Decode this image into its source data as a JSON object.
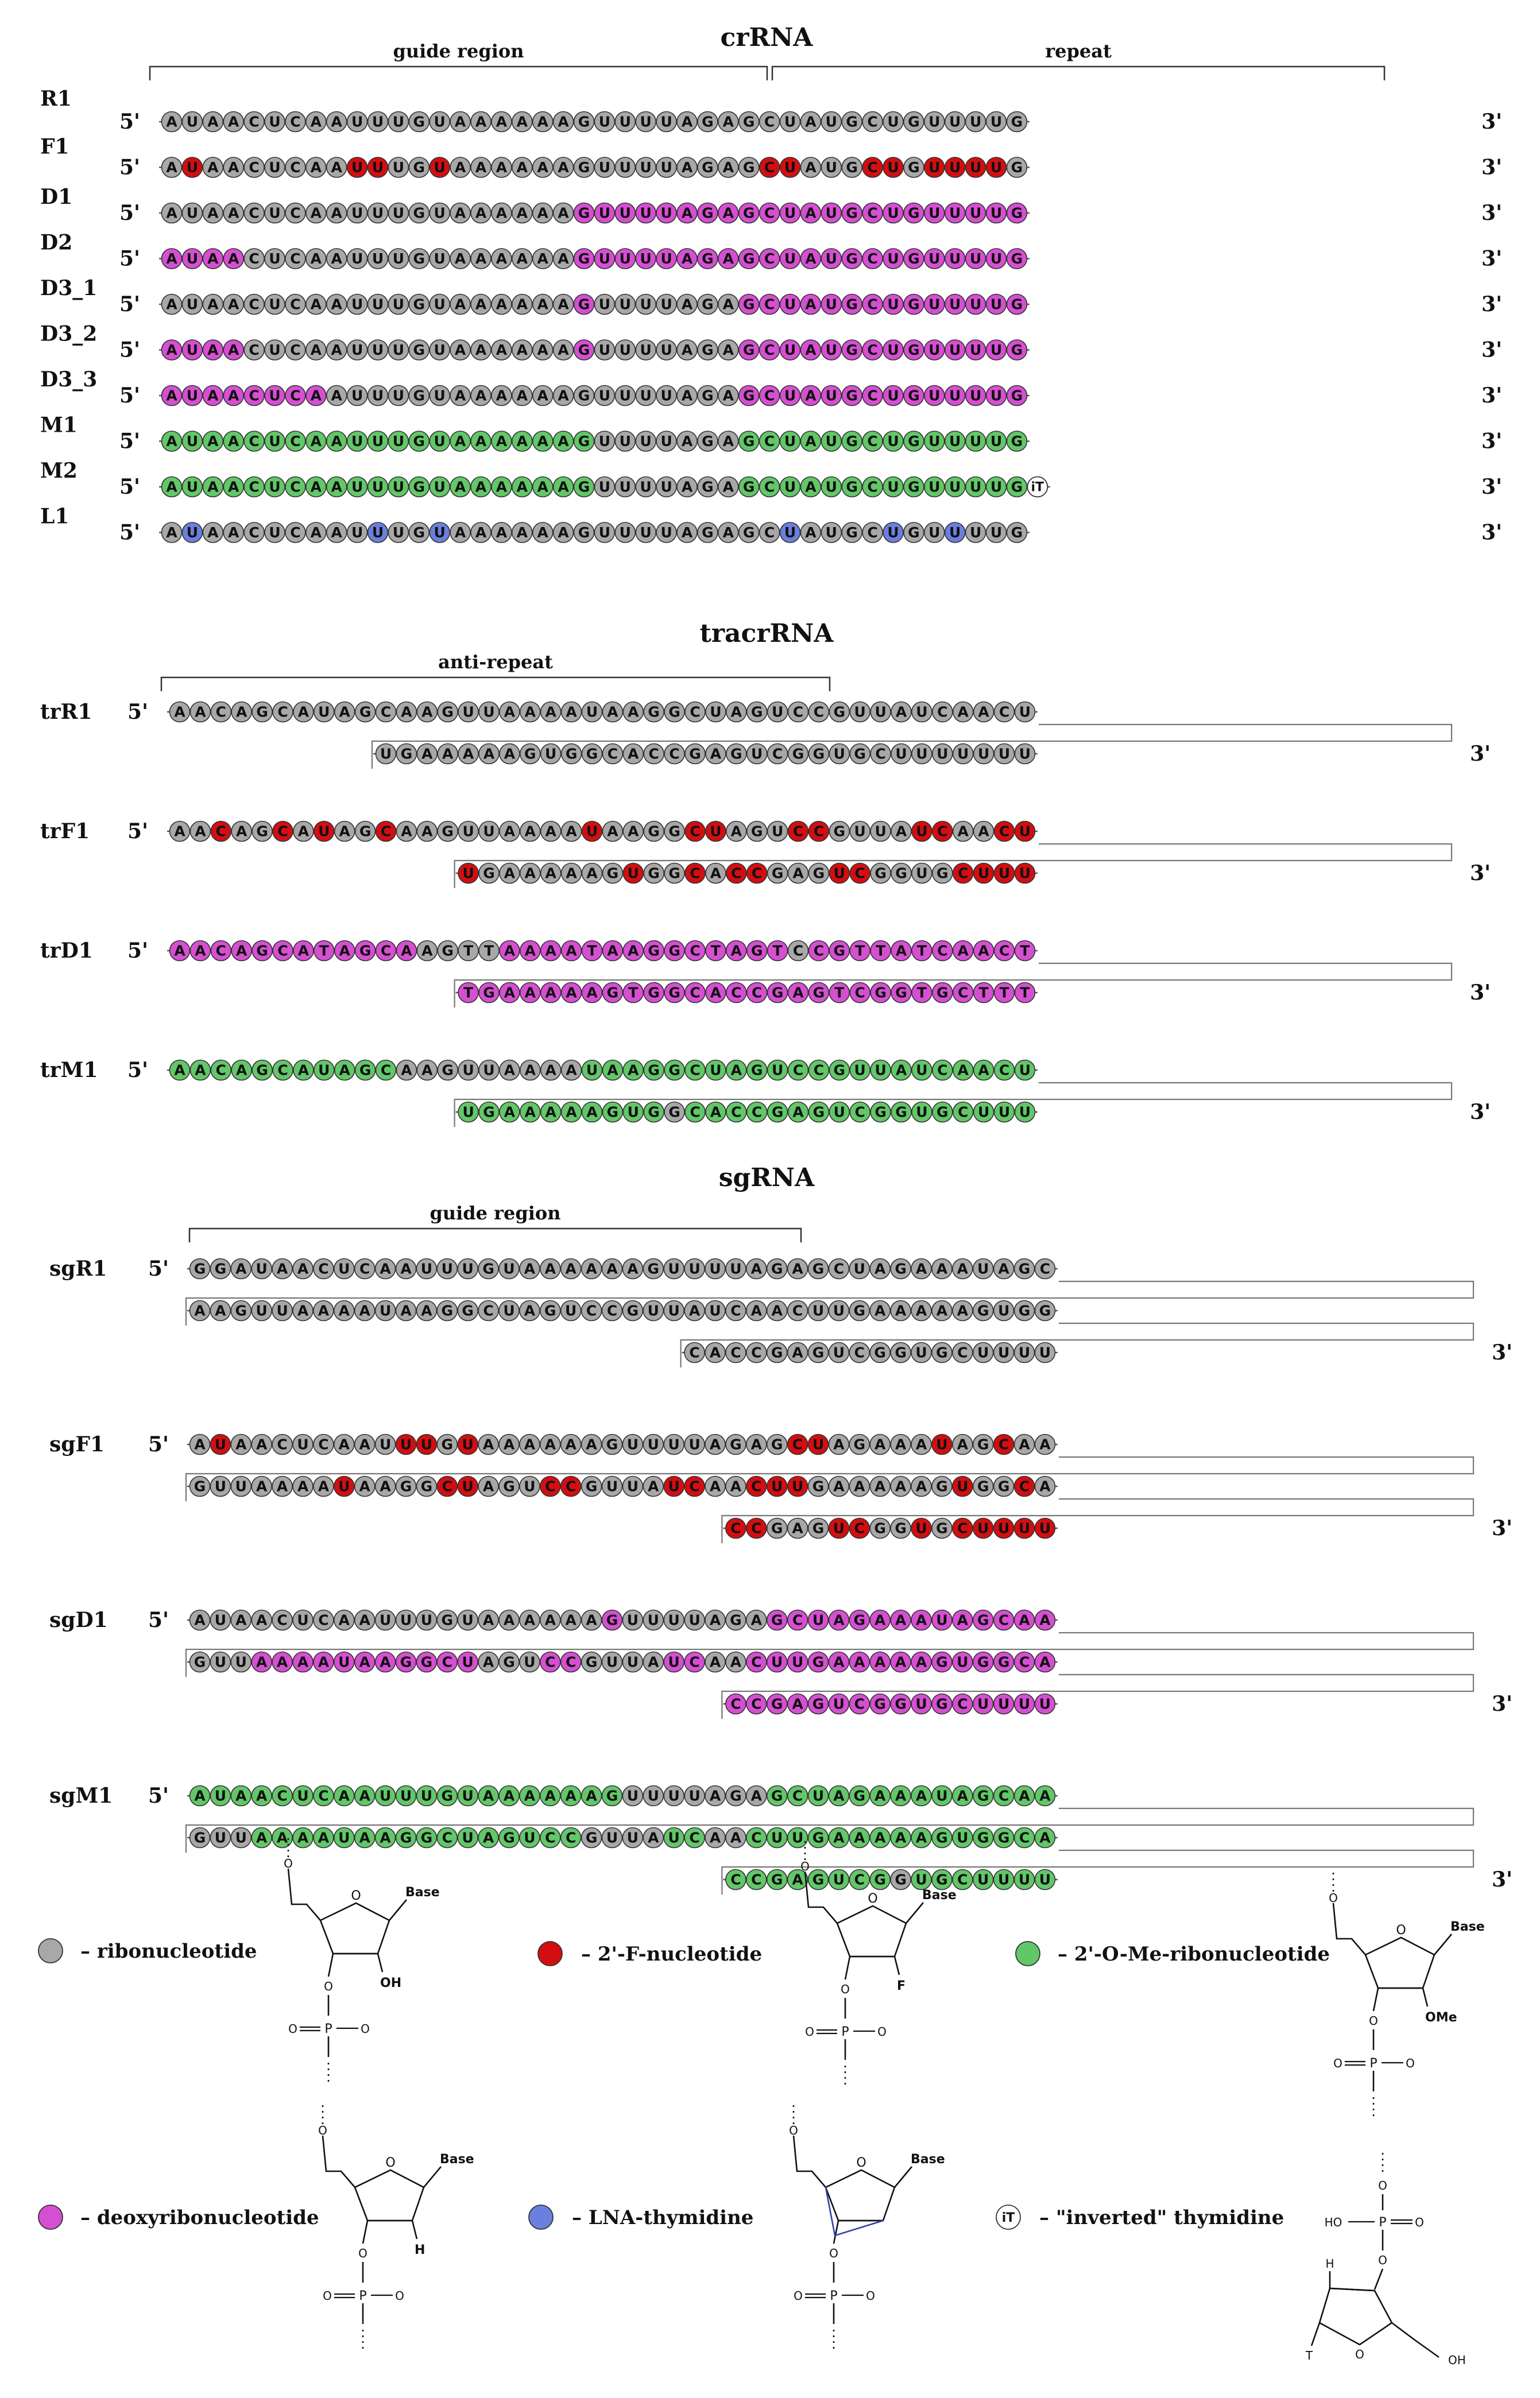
{
  "colors": {
    "R": "#a8a8a8",
    "F": "#d40e10",
    "D": "#d64fd2",
    "M": "#62c768",
    "L": "#6b7fde",
    "iT": "#ffffff",
    "stroke": "#333333",
    "bracket": "#333333",
    "frame": "#777777"
  },
  "labels": {
    "five": "5'",
    "three": "3'",
    "cr_title": "crRNA",
    "tr_title": "tracrRNA",
    "sg_title": "sgRNA",
    "guide_region": "guide region",
    "repeat": "repeat",
    "anti_repeat": "anti-repeat"
  },
  "crrna": [
    {
      "name": "R1",
      "seq": "AUAACUCAAUUUGUAAAAAAGUUUUAGAGCUAUGCUGUUUUG",
      "mods": "RRRRRRRRRRRRRRRRRRRRRRRRRRRRRRRRRRRRRRRRRR"
    },
    {
      "name": "F1",
      "seq": "AUAACUCAAUUUGUAAAAAAGUUUUAGAGCUAUGCUGUUUUG",
      "mods": "RFRRRRRRRFFRRFRRRRRRRRRRRRRRRFFRRRFFRFFFFR"
    },
    {
      "name": "D1",
      "seq": "AUAACUCAAUUUGUAAAAAAGUUUUAGAGCUAUGCUGUUUUG",
      "mods": "RRRRRRRRRRRRRRRRRRRRDDDDDDDDDDDDDDDDDDDDDD"
    },
    {
      "name": "D2",
      "seq": "AUAACUCAAUUUGUAAAAAAGUUUUAGAGCUAUGCUGUUUUG",
      "mods": "DDDDRRRRRRRRRRRRRRRRDDDDDDDDDDDDDDDDDDDDDD"
    },
    {
      "name": "D3_1",
      "seq": "AUAACUCAAUUUGUAAAAAAGUUUUAGAGCUAUGCUGUUUUG",
      "mods": "RRRRRRRRRRRRRRRRRRRRDRRRRRRRDDDDDDDDDDDDDD"
    },
    {
      "name": "D3_2",
      "seq": "AUAACUCAAUUUGUAAAAAAGUUUUAGAGCUAUGCUGUUUUG",
      "mods": "DDDDRRRRRRRRRRRRRRRRDRRRRRRRDDDDDDDDDDDDDD"
    },
    {
      "name": "D3_3",
      "seq": "AUAACUCAAUUUGUAAAAAAGUUUUAGAGCUAUGCUGUUUUG",
      "mods": "DDDDDDDDRRRRRRRRRRRRRRRRRRRRDDDDDDDDDDDDDD"
    },
    {
      "name": "M1",
      "seq": "AUAACUCAAUUUGUAAAAAAGUUUUAGAGCUAUGCUGUUUUG",
      "mods": "MMMMMMMMMMMMMMMMMMMMMRRRRRRRMMMMMMMMMMMMMM"
    },
    {
      "name": "M2",
      "seq": "AUAACUCAAUUUGUAAAAAAGUUUUAGAGCUAUGCUGUUUUG",
      "mods": "MMMMMMMMMMMMMMMMMMMMMRRRRRRRMMMMMMMMMMMMMM",
      "tail": "iT"
    },
    {
      "name": "L1",
      "seq": "AUAACUCAAUUUGUAAAAAAGUUUUAGAGCUAUGCUGUUUUG",
      "mods": "RLRRRRRRRRLRRLRRRRRRRRRRRRRRRRLRRRRLRRLRRR"
    }
  ],
  "tracrrna": [
    {
      "name": "trR1",
      "seq1": "AACAGCAUAGCAAGUUAAAAUAAGGCUAGUCCGUUAUCAACU",
      "mods1": "RRRRRRRRRRRRRRRRRRRRRRRRRRRRRRRRRRRRRRRRRR",
      "seq2": "UGAAAAAGUGGCACCGAGUCGGUGCUUUUUUU",
      "mods2": "RRRRRRRRRRRRRRRRRRRRRRRRRRRRRRRR"
    },
    {
      "name": "trF1",
      "seq1": "AACAGCAUAGCAAGUUAAAAUAAGGCUAGUCCGUUAUCAACU",
      "mods1": "RRFRRFRFRRFRRRRRRRRRFRRRRFFRRRFFRRRRFFRRFF",
      "seq2": "UGAAAAAGUGGCACCGAGUCGGUGCUUU",
      "mods2": "FRRRRRRRFRRFRFFRRRFFRRRRFFFF"
    },
    {
      "name": "trD1",
      "seq1": "AACAGCATAGCAAGTTAAAATAAGGCTAGTCCGTTATCAACT",
      "mods1": "DDDDDDDDDDDDRRRRDDDDDDDDDDDDDDRDDDDDDDDDDD",
      "seq2": "TGAAAAAGTGGCACCGAGTCGGTGCTTT",
      "mods2": "DDDDDDDDDDDDDDDDDDDDDDDDDDDD"
    },
    {
      "name": "trM1",
      "seq1": "AACAGCAUAGCAAGUUAAAAUAAGGCUAGUCCGUUAUCAACU",
      "mods1": "MMMMMMMMMMMRRRRRRRRRMMMMMMMMMMMMMMMMMMMMMM",
      "seq2": "UGAAAAAGUGGCACCGAGUCGGUGCUUU",
      "mods2": "MMMMMMMMMMRMMMMMMMMMMMMMMMMM"
    }
  ],
  "sgrna": [
    {
      "name": "sgR1",
      "seq1": "GGAUAACUCAAUUUGUAAAAAAGUUUUAGAGCUAGAAAUAGC",
      "mods1": "RRRRRRRRRRRRRRRRRRRRRRRRRRRRRRRRRRRRRRRRRR",
      "seq2": "AAGUUAAAAUAAGGCUAGUCCGUUAUCAACUUGAAAAAGUGG",
      "mods2": "RRRRRRRRRRRRRRRRRRRRRRRRRRRRRRRRRRRRRRRRRR",
      "seq3": "CACCGAGUCGGUGCUUUU",
      "mods3": "RRRRRRRRRRRRRRRRRR"
    },
    {
      "name": "sgF1",
      "seq1": "AUAACUCAAUUUGUAAAAAAGUUUUAGAGCUAGAAAUAGCAA",
      "mods1": "RFRRRRRRRRFFRFRRRRRRRRRRRRRRRFFRRRRRFRRFRR",
      "seq2": "GUUAAAAUAAGGCUAGUCCGUUAUCAACUUGAAAAAGUGGCA",
      "mods2": "RRRRRRRFRRRRFFRRRFFRRRRFFRRFFFRRRRRRRFRRFR",
      "seq3": "CCGAGUCGGUGCUUUU",
      "mods3": "FFRRRFFRRFRFFFFF"
    },
    {
      "name": "sgD1",
      "seq1": "AUAACUCAAUUUGUAAAAAAGUUUUAGAGCUAGAAAUAGCAA",
      "mods1": "RRRRRRRRRRRRRRRRRRRRDRRRRRRRDDDDDDDDDDDDDD",
      "seq2": "GUUAAAAUAAGGCUAGUCCGUUAUCAACUUGAAAAAGUGGCA",
      "mods2": "RRRDDDDDDDDDDDRRRDDRRRRDDRRDDDDDDDDDDDDDDD",
      "seq3": "CCGAGUCGGUGCUUUU",
      "mods3": "DDDDDDDDDDDDDDDD"
    },
    {
      "name": "sgM1",
      "seq1": "AUAACUCAAUUUGUAAAAAAGUUUUAGAGCUAGAAAUAGCAA",
      "mods1": "MMMMMMMMMMMMMMMMMMMMMRRRRRRRMMMMMMMMMMMMMM",
      "seq2": "GUUAAAAUAAGGCUAGUCCGUUAUCAACUUGAAAAAGUGGCA",
      "mods2": "RRRMMMMMMMMMMMMMMMMRRRRMMRRMMMMMMMMMMMMMMM",
      "seq3": "CCGAGUCGGUGCUUUU",
      "mods3": "MMMMMMMMRMMMMMMM"
    }
  ],
  "legend": [
    {
      "key": "R",
      "text": "– ribonucleotide"
    },
    {
      "key": "F",
      "text": "– 2'-F-nucleotide"
    },
    {
      "key": "M",
      "text": "– 2'-O-Me-ribonucleotide"
    },
    {
      "key": "D",
      "text": "– deoxyribonucleotide"
    },
    {
      "key": "L",
      "text": "– LNA-thymidine"
    },
    {
      "key": "iT",
      "text": "– \"inverted\" thymidine",
      "symbol": "iT"
    }
  ],
  "chem_labels": {
    "base": "Base",
    "oh": "OH",
    "f": "F",
    "ome": "OMe",
    "h": "H",
    "t": "T",
    "o": "O",
    "p": "P",
    "ho": "HO"
  }
}
